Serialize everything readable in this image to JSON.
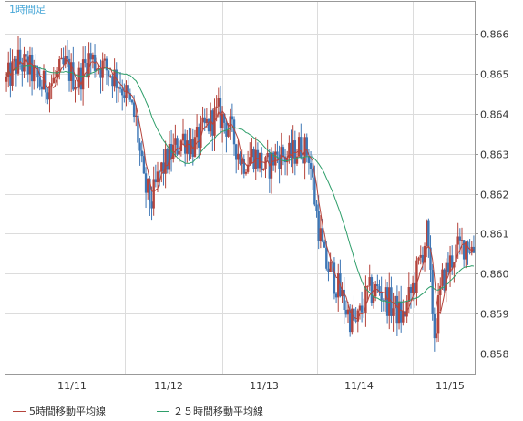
{
  "chart_data": {
    "type": "candlestick",
    "title": "1時間足",
    "x_labels": [
      "11/11",
      "11/12",
      "11/13",
      "11/14",
      "11/15"
    ],
    "ylim": [
      0.8575,
      0.8668
    ],
    "y_ticks": [
      0.858,
      0.859,
      0.86,
      0.861,
      0.862,
      0.863,
      0.864,
      0.865,
      0.866
    ],
    "y_tick_labels": [
      "0.858",
      "0.859",
      "0.860",
      "0.861",
      "0.862",
      "0.863",
      "0.864",
      "0.865",
      "0.866"
    ],
    "grid": true,
    "legend_position": "bottom-left",
    "series": [
      {
        "name": "5時間移動平均線",
        "color": "#b5443c"
      },
      {
        "name": "２５時間移動平均線",
        "color": "#2e9e6a"
      }
    ],
    "anchors": [
      [
        0,
        0.8648
      ],
      [
        6,
        0.8653
      ],
      [
        12,
        0.8651
      ],
      [
        18,
        0.8647
      ],
      [
        24,
        0.8648
      ],
      [
        30,
        0.8652
      ],
      [
        36,
        0.8648
      ],
      [
        42,
        0.8654
      ],
      [
        48,
        0.8652
      ],
      [
        54,
        0.865
      ],
      [
        60,
        0.8646
      ],
      [
        66,
        0.8638
      ],
      [
        70,
        0.8622
      ],
      [
        74,
        0.8618
      ],
      [
        78,
        0.8625
      ],
      [
        84,
        0.863
      ],
      [
        90,
        0.8634
      ],
      [
        96,
        0.8632
      ],
      [
        102,
        0.8637
      ],
      [
        108,
        0.864
      ],
      [
        114,
        0.8636
      ],
      [
        120,
        0.8628
      ],
      [
        126,
        0.863
      ],
      [
        132,
        0.8626
      ],
      [
        138,
        0.863
      ],
      [
        144,
        0.8629
      ],
      [
        150,
        0.8632
      ],
      [
        154,
        0.863
      ],
      [
        158,
        0.8615
      ],
      [
        162,
        0.8603
      ],
      [
        166,
        0.86
      ],
      [
        170,
        0.8595
      ],
      [
        174,
        0.859
      ],
      [
        178,
        0.8587
      ],
      [
        184,
        0.8595
      ],
      [
        190,
        0.8596
      ],
      [
        196,
        0.8592
      ],
      [
        202,
        0.8589
      ],
      [
        208,
        0.8598
      ],
      [
        214,
        0.861
      ],
      [
        218,
        0.8585
      ],
      [
        222,
        0.8598
      ],
      [
        228,
        0.8605
      ],
      [
        234,
        0.8608
      ],
      [
        238,
        0.8606
      ]
    ],
    "candle_count": 239,
    "candle_up_color": "#b5443c",
    "candle_down_color": "#3d76b5"
  },
  "colors": {
    "grid": "#dcdcdc",
    "frame": "#999999",
    "title": "#4aa8d8"
  }
}
